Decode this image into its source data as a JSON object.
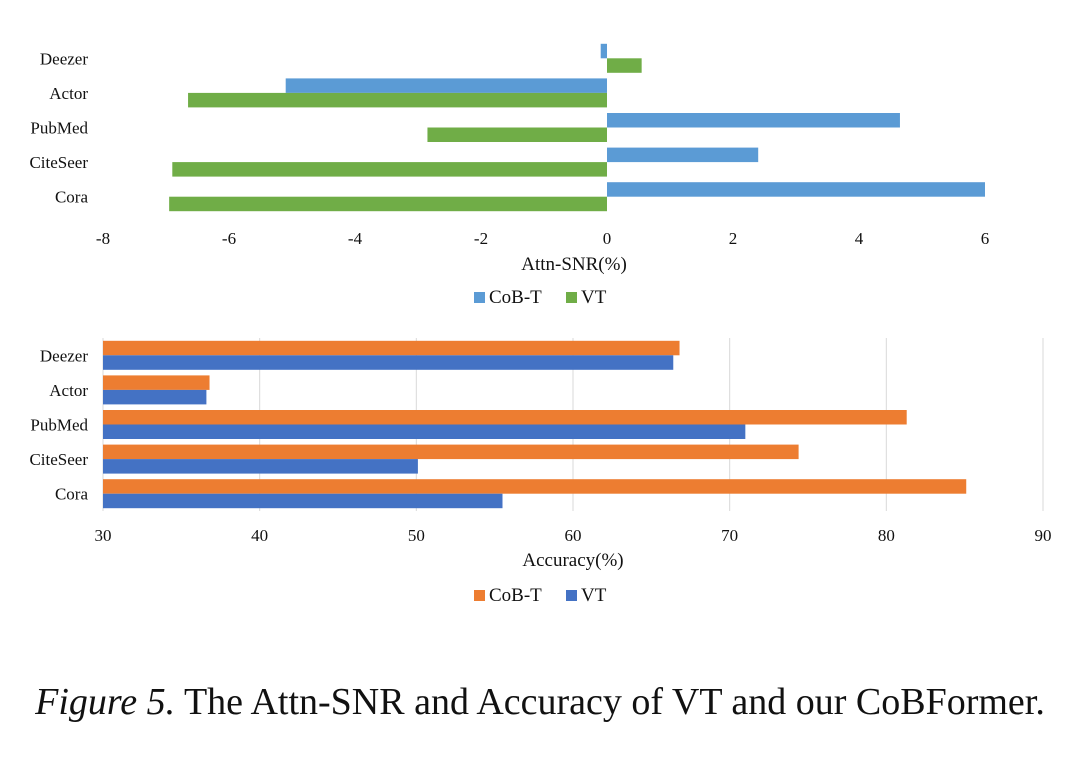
{
  "chart_data": [
    {
      "type": "bar",
      "orientation": "horizontal",
      "categories": [
        "Deezer",
        "Actor",
        "PubMed",
        "CiteSeer",
        "Cora"
      ],
      "series": [
        {
          "name": "CoB-T",
          "color": "#5b9bd5",
          "values": [
            -0.1,
            -5.1,
            4.65,
            2.4,
            6.0
          ]
        },
        {
          "name": "VT",
          "color": "#70ad47",
          "values": [
            0.55,
            -6.65,
            -2.85,
            -6.9,
            -6.95
          ]
        }
      ],
      "xlabel": "Attn-SNR(%)",
      "xlim": [
        -8,
        6
      ],
      "xticks": [
        -8,
        -6,
        -4,
        -2,
        0,
        2,
        4,
        6
      ],
      "grid": false,
      "legend_position": "bottom"
    },
    {
      "type": "bar",
      "orientation": "horizontal",
      "categories": [
        "Deezer",
        "Actor",
        "PubMed",
        "CiteSeer",
        "Cora"
      ],
      "series": [
        {
          "name": "CoB-T",
          "color": "#ed7d31",
          "values": [
            66.8,
            36.8,
            81.3,
            74.4,
            85.1
          ]
        },
        {
          "name": "VT",
          "color": "#4472c4",
          "values": [
            66.4,
            36.6,
            71.0,
            50.1,
            55.5
          ]
        }
      ],
      "xlabel": "Accuracy(%)",
      "xlim": [
        30,
        90
      ],
      "xticks": [
        30,
        40,
        50,
        60,
        70,
        80,
        90
      ],
      "grid": true,
      "legend_position": "bottom"
    }
  ],
  "caption": {
    "lead": "Figure 5.",
    "text": " The Attn-SNR and Accuracy of VT and our CoBFormer."
  }
}
